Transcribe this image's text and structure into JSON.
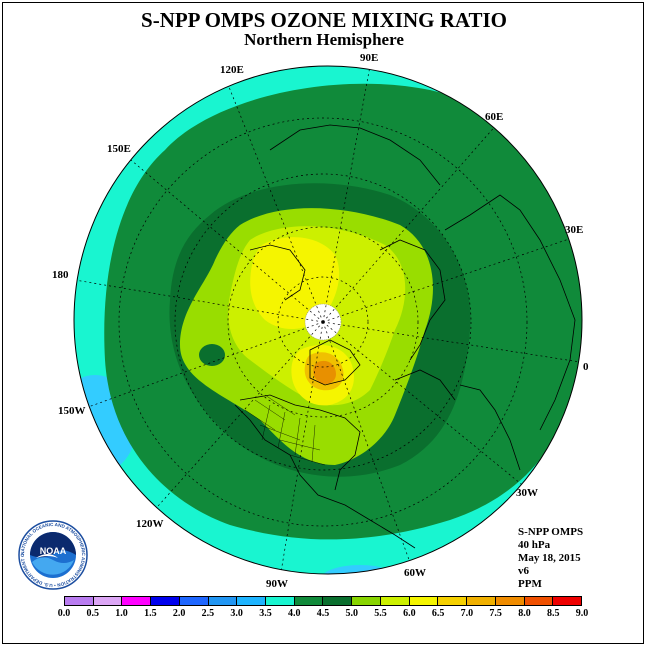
{
  "title": "S-NPP OMPS OZONE MIXING RATIO",
  "subtitle": "Northern Hemisphere",
  "map": {
    "projection": "polar stereographic",
    "hemisphere": "north",
    "lon_labels": [
      "120E",
      "90E",
      "60E",
      "30E",
      "0",
      "30W",
      "60W",
      "90W",
      "120W",
      "150W",
      "180",
      "150E"
    ],
    "colors": {
      "ring_3_5": "#19f5d0",
      "ring_3_0": "#33ccff",
      "ring_4_0": "#108a3a",
      "ring_4_5": "#0a6f2e",
      "ring_5_0": "#99dd00",
      "ring_5_5": "#ccf000",
      "ring_6_0": "#f5f500",
      "ring_6_5": "#f0c000",
      "ring_7_0": "#e89000",
      "missing": "#ffffff",
      "coast": "#000000",
      "grid": "#000000"
    }
  },
  "info": {
    "instrument": "S-NPP OMPS",
    "level": "40 hPa",
    "date": "May 18, 2015",
    "version": "v6",
    "units": "PPM"
  },
  "colorbar": {
    "ticks": [
      "0.0",
      "0.5",
      "1.0",
      "1.5",
      "2.0",
      "2.5",
      "3.0",
      "3.5",
      "4.0",
      "4.5",
      "5.0",
      "5.5",
      "6.0",
      "6.5",
      "7.0",
      "7.5",
      "8.0",
      "8.5",
      "9.0"
    ],
    "colors": [
      "#b97cf0",
      "#dca6f5",
      "#ff00ff",
      "#0000ee",
      "#1e66ff",
      "#2196f3",
      "#1eb4ff",
      "#19f5d0",
      "#108a3a",
      "#0a6f2e",
      "#88d400",
      "#ccf000",
      "#f5f500",
      "#f5d000",
      "#f0b000",
      "#f08c00",
      "#f05000",
      "#ee0000",
      "#8b5a2b"
    ]
  },
  "logo": {
    "text": "NOAA",
    "ring_text": "NATIONAL OCEANIC AND ATMOSPHERIC ADMINISTRATION • U.S. DEPARTMENT OF COMMERCE"
  }
}
